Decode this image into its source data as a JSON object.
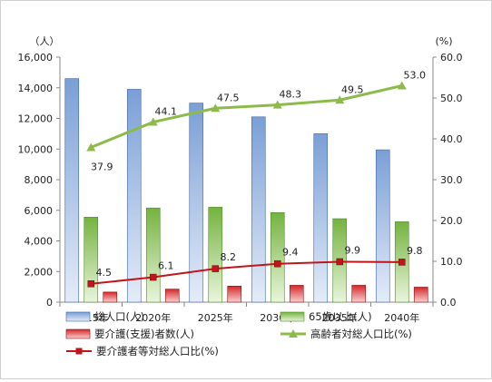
{
  "chart_data": {
    "type": "bar",
    "categories": [
      "2015年",
      "2020年",
      "2025年",
      "2030年",
      "2035年",
      "2040年"
    ],
    "y_left": {
      "unit_label": "（人）",
      "ylim": [
        0,
        16000
      ],
      "ticks": [
        "0",
        "2,000",
        "4,000",
        "6,000",
        "8,000",
        "10,000",
        "12,000",
        "14,000",
        "16,000"
      ]
    },
    "y_right": {
      "unit_label": "(%)",
      "ylim": [
        0,
        60
      ],
      "ticks": [
        "0.0",
        "10.0",
        "20.0",
        "30.0",
        "40.0",
        "50.0",
        "60.0"
      ]
    },
    "series": [
      {
        "name": "総人口(人)",
        "kind": "bar",
        "axis": "left",
        "color": "#7a9fd6",
        "values": [
          14600,
          13900,
          13000,
          12100,
          11000,
          9950
        ]
      },
      {
        "name": "65歳以上(人)",
        "kind": "bar",
        "axis": "left",
        "color": "#8fc85a",
        "values": [
          5550,
          6150,
          6200,
          5850,
          5450,
          5250
        ]
      },
      {
        "name": "要介護(支援)者数(人)",
        "kind": "bar",
        "axis": "left",
        "color": "#d62728",
        "values": [
          660,
          850,
          1050,
          1100,
          1100,
          980
        ]
      },
      {
        "name": "高齢者対総人口比(%)",
        "kind": "line",
        "axis": "right",
        "color": "#8dbb4a",
        "values": [
          37.9,
          44.1,
          47.5,
          48.3,
          49.5,
          53.0
        ],
        "labels": [
          "37.9",
          "44.1",
          "47.5",
          "48.3",
          "49.5",
          "53.0"
        ]
      },
      {
        "name": "要介護者等対総人口比(%)",
        "kind": "line",
        "axis": "right",
        "color": "#c0151b",
        "values": [
          4.5,
          6.1,
          8.2,
          9.4,
          9.9,
          9.8
        ],
        "labels": [
          "4.5",
          "6.1",
          "8.2",
          "9.4",
          "9.9",
          "9.8"
        ]
      }
    ],
    "grid": false,
    "legend": "bottom"
  }
}
